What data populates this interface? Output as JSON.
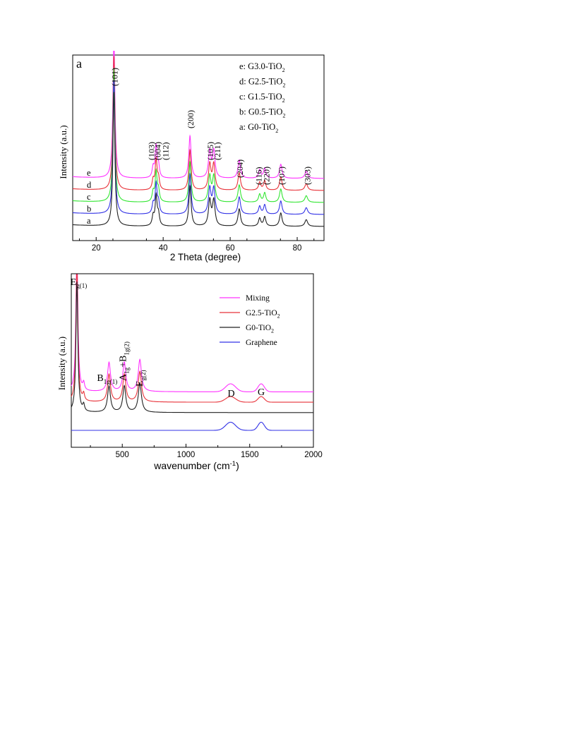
{
  "chart_data": [
    {
      "type": "line",
      "panel_label": "a",
      "xlabel": "2 Theta (degree)",
      "ylabel": "Intensity (a.u.)",
      "xlim": [
        13,
        88
      ],
      "xticks": [
        20,
        40,
        60,
        80
      ],
      "legend_position": "top-right",
      "legend": [
        {
          "prefix": "e: G3.0-TiO",
          "sub": "2"
        },
        {
          "prefix": "d: G2.5-TiO",
          "sub": "2"
        },
        {
          "prefix": "c: G1.5-TiO",
          "sub": "2"
        },
        {
          "prefix": "b: G0.5-TiO",
          "sub": "2"
        },
        {
          "prefix": "a: G0-TiO",
          "sub": "2"
        }
      ],
      "peaks": [
        {
          "pos": 25.3,
          "h": 1.0,
          "w": 0.35
        },
        {
          "pos": 37.0,
          "h": 0.07,
          "w": 0.35
        },
        {
          "pos": 37.9,
          "h": 0.22,
          "w": 0.35
        },
        {
          "pos": 38.6,
          "h": 0.08,
          "w": 0.35
        },
        {
          "pos": 48.0,
          "h": 0.3,
          "w": 0.4
        },
        {
          "pos": 53.9,
          "h": 0.19,
          "w": 0.45
        },
        {
          "pos": 55.1,
          "h": 0.19,
          "w": 0.45
        },
        {
          "pos": 62.7,
          "h": 0.13,
          "w": 0.45
        },
        {
          "pos": 68.8,
          "h": 0.06,
          "w": 0.4
        },
        {
          "pos": 70.3,
          "h": 0.07,
          "w": 0.4
        },
        {
          "pos": 75.1,
          "h": 0.1,
          "w": 0.45
        },
        {
          "pos": 82.7,
          "h": 0.05,
          "w": 0.5
        }
      ],
      "reflections": [
        {
          "hkl": "(101)",
          "x": 25.3
        },
        {
          "hkl": "(103)",
          "x": 36.3
        },
        {
          "hkl": "(004)",
          "x": 38.2
        },
        {
          "hkl": "(112)",
          "x": 40.5
        },
        {
          "hkl": "(200)",
          "x": 48.0
        },
        {
          "hkl": "(105)",
          "x": 53.9
        },
        {
          "hkl": "(211)",
          "x": 56.0
        },
        {
          "hkl": "(204)",
          "x": 62.7
        },
        {
          "hkl": "(116)",
          "x": 68.3
        },
        {
          "hkl": "(220)",
          "x": 70.6
        },
        {
          "hkl": "(107)",
          "x": 75.1
        },
        {
          "hkl": "(303)",
          "x": 82.8
        }
      ],
      "series": [
        {
          "label": "e",
          "name": "G3.0-TiO2",
          "color": "#ff33ff",
          "offset": 4.0
        },
        {
          "label": "d",
          "name": "G2.5-TiO2",
          "color": "#e8333a",
          "offset": 3.0
        },
        {
          "label": "c",
          "name": "G1.5-TiO2",
          "color": "#33e633",
          "offset": 2.0
        },
        {
          "label": "b",
          "name": "G0.5-TiO2",
          "color": "#3333e6",
          "offset": 1.0
        },
        {
          "label": "a",
          "name": "G0-TiO2",
          "color": "#222222",
          "offset": 0.0
        }
      ]
    },
    {
      "type": "line",
      "xlabel_main": "wavenumber (cm",
      "xlabel_sup": "-1",
      "xlabel_end": ")",
      "ylabel": "Intensity (a.u.)",
      "xlim": [
        100,
        2000
      ],
      "xticks": [
        500,
        1000,
        1500,
        2000
      ],
      "legend_position": "top-right",
      "legend": [
        {
          "prefix": "Mixing",
          "sub": "",
          "color": "#ff33ff"
        },
        {
          "prefix": "G2.5-TiO",
          "sub": "2",
          "color": "#e8333a"
        },
        {
          "prefix": "G0-TiO",
          "sub": "2",
          "color": "#222222"
        },
        {
          "prefix": "Graphene",
          "sub": "",
          "color": "#3333e6"
        }
      ],
      "annotations": [
        {
          "main": "E",
          "sub": "g(1)",
          "x": 148
        },
        {
          "main": "B",
          "sub": "1g(1)",
          "x": 390
        },
        {
          "main": "A",
          "sub": "1g",
          "x": 515,
          "rest": "+B",
          "rest_sub": "1g(2)"
        },
        {
          "main": "E",
          "sub": "g(2)",
          "x": 636
        },
        {
          "main": "D",
          "sub": "",
          "x": 1360
        },
        {
          "main": "G",
          "sub": "",
          "x": 1590
        }
      ],
      "tio2_peaks": [
        {
          "pos": 144,
          "h": 1.0,
          "w": 9
        },
        {
          "pos": 197,
          "h": 0.05,
          "w": 8
        },
        {
          "pos": 396,
          "h": 0.2,
          "w": 14
        },
        {
          "pos": 516,
          "h": 0.2,
          "w": 14
        },
        {
          "pos": 638,
          "h": 0.22,
          "w": 15
        }
      ],
      "graphene_peaks": [
        {
          "pos": 1350,
          "h": 0.055,
          "w": 55
        },
        {
          "pos": 1590,
          "h": 0.055,
          "w": 35
        }
      ],
      "series": [
        {
          "name": "Mixing",
          "color": "#ff33ff",
          "offset": 0.26,
          "tio2": 1.0,
          "graphene": 1.0
        },
        {
          "name": "G2.5-TiO2",
          "color": "#e8333a",
          "offset": 0.19,
          "tio2": 0.95,
          "graphene": 0.7
        },
        {
          "name": "G0-TiO2",
          "color": "#222222",
          "offset": 0.12,
          "tio2": 0.9,
          "graphene": 0.0
        },
        {
          "name": "Graphene",
          "color": "#3333e6",
          "offset": 0.0,
          "tio2": 0.0,
          "graphene": 1.0
        }
      ]
    }
  ]
}
